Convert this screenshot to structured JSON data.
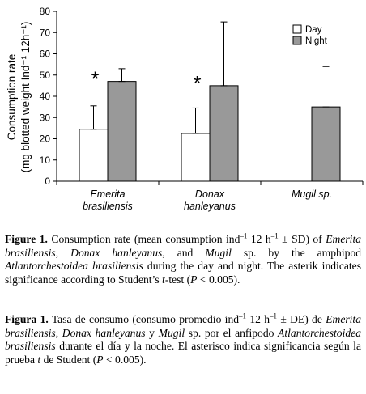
{
  "chart_data": {
    "type": "bar",
    "ylabel_line1": "Consumption rate",
    "ylabel_line2": "(mg blotted weight Ind⁻¹ 12h⁻¹)",
    "ylim": [
      0,
      80
    ],
    "yticks": [
      "0",
      "10",
      "20",
      "30",
      "40",
      "50",
      "60",
      "70",
      "80"
    ],
    "categories": [
      {
        "line1": "Emerita",
        "line2": "brasiliensis"
      },
      {
        "line1": "Donax",
        "line2": "hanleyanus"
      },
      {
        "line1": "Mugil sp.",
        "line2": ""
      }
    ],
    "series": [
      {
        "name": "Day",
        "color": "#ffffff",
        "values": [
          24.5,
          22.5,
          null
        ],
        "errors": [
          11,
          12,
          null
        ]
      },
      {
        "name": "Night",
        "color": "#999999",
        "values": [
          47,
          45,
          35
        ],
        "errors": [
          6,
          30,
          19
        ]
      }
    ],
    "significance": [
      "*",
      "*",
      ""
    ],
    "legend_position": "top-right",
    "grid": false
  },
  "caption_en": {
    "label": "Figure 1.",
    "t1": " Consumption rate (mean consumption ind",
    "sup1": "–1",
    "t2": " 12 h",
    "sup2": "–1",
    "t3": " ± SD) of ",
    "sp1": "Emerita brasiliensis",
    "t4": ", ",
    "sp2": "Donax hanleyanus",
    "t5": ", and ",
    "sp3": "Mugil",
    "t6": " sp. by the amphipod ",
    "sp4": "Atlantorchestoidea brasiliensis",
    "t7": " during the day and night. The asterik indicates significance according to Student’s ",
    "it1": "t",
    "t8": "-test (",
    "it2": "P",
    "t9": " < 0.005)."
  },
  "caption_es": {
    "label": "Figura 1.",
    "t1": " Tasa de consumo (consumo promedio ind",
    "sup1": "–1",
    "t2": " 12 h",
    "sup2": "–1",
    "t3": " ± DE) de ",
    "sp1": "Emerita brasiliensis",
    "t4": ", ",
    "sp2": "Donax hanleyanus",
    "t5": " y ",
    "sp3": "Mugil",
    "t6": " sp. por el anfipodo ",
    "sp4": "Atlantorchestoidea brasiliensis",
    "t7": " durante el día y la noche. El asterisco indica significancia según la prueba ",
    "it1": "t",
    "t8": " de Student (",
    "it2": "P",
    "t9": " < 0.005)."
  }
}
